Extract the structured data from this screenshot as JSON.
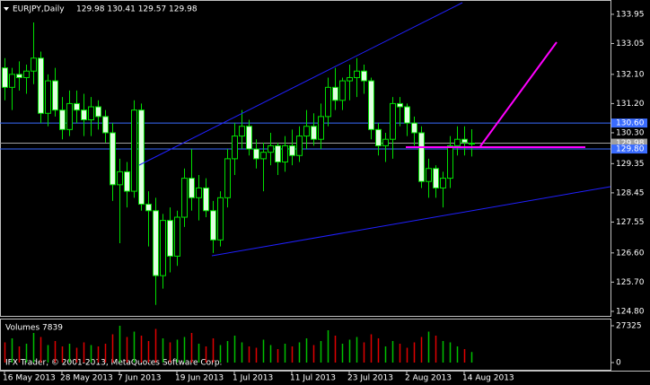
{
  "chart_data": [
    {
      "type": "candlestick",
      "title": "EURJPY,Daily",
      "subtitle": "129.98 130.41 129.57 129.98",
      "categories": [
        "16 May 2013",
        null,
        null,
        null,
        null,
        null,
        null,
        null,
        "28 May 2013",
        null,
        null,
        null,
        null,
        null,
        null,
        null,
        "7 Jun 2013",
        null,
        null,
        null,
        null,
        null,
        null,
        null,
        "19 Jun 2013",
        null,
        null,
        null,
        null,
        null,
        null,
        null,
        "1 Jul 2013",
        null,
        null,
        null,
        null,
        null,
        null,
        null,
        "11 Jul 2013",
        null,
        null,
        null,
        null,
        null,
        null,
        null,
        "23 Jul 2013",
        null,
        null,
        null,
        null,
        null,
        null,
        null,
        "2 Aug 2013",
        null,
        null,
        null,
        null,
        null,
        null,
        null,
        "14 Aug 2013",
        null
      ],
      "open": [
        132.3,
        131.7,
        132.1,
        132.0,
        132.2,
        132.6,
        130.9,
        131.9,
        131.0,
        130.4,
        131.2,
        131.0,
        130.7,
        131.1,
        130.8,
        130.3,
        128.7,
        129.1,
        128.5,
        131.0,
        128.1,
        127.9,
        125.9,
        127.6,
        126.5,
        127.7,
        128.9,
        128.3,
        128.6,
        127.9,
        127.0,
        128.3,
        129.5,
        130.2,
        130.5,
        129.8,
        129.5,
        129.7,
        129.9,
        129.4,
        129.9,
        129.6,
        130.2,
        130.5,
        130.1,
        130.8,
        131.7,
        131.3,
        131.9,
        132.0,
        132.2,
        131.9,
        130.4,
        129.9,
        130.1,
        131.2,
        131.1,
        130.6,
        130.3,
        128.8,
        129.2,
        128.6,
        128.9,
        129.9,
        130.1,
        129.98
      ],
      "high": [
        132.6,
        132.3,
        132.5,
        132.4,
        133.7,
        132.8,
        132.1,
        132.3,
        131.4,
        131.6,
        131.6,
        131.5,
        131.4,
        131.3,
        131.0,
        130.6,
        129.5,
        129.4,
        131.3,
        131.2,
        128.5,
        128.3,
        127.8,
        128.0,
        127.9,
        129.2,
        129.8,
        129.0,
        128.9,
        128.2,
        128.5,
        129.8,
        130.6,
        131.0,
        130.7,
        130.1,
        130.0,
        130.3,
        130.0,
        130.2,
        130.4,
        130.5,
        131.0,
        130.9,
        131.2,
        132.0,
        132.3,
        132.0,
        132.4,
        132.6,
        132.4,
        132.0,
        130.6,
        130.3,
        131.4,
        131.4,
        131.2,
        130.8,
        130.5,
        129.5,
        129.3,
        129.1,
        130.2,
        130.5,
        130.5,
        130.41
      ],
      "low": [
        131.3,
        131.0,
        131.6,
        131.5,
        131.8,
        130.6,
        130.5,
        130.8,
        130.1,
        130.2,
        130.6,
        130.2,
        130.2,
        130.4,
        130.0,
        128.2,
        126.9,
        128.0,
        128.3,
        127.9,
        126.8,
        125.0,
        125.5,
        126.0,
        126.2,
        127.4,
        127.9,
        127.6,
        127.7,
        126.6,
        126.8,
        128.0,
        129.0,
        129.8,
        129.6,
        129.2,
        128.5,
        129.3,
        129.0,
        129.1,
        129.3,
        129.4,
        129.8,
        129.9,
        129.8,
        130.5,
        131.0,
        131.0,
        131.3,
        131.4,
        131.5,
        130.1,
        129.6,
        129.4,
        129.5,
        130.5,
        130.2,
        129.9,
        128.6,
        128.3,
        128.3,
        128.0,
        128.6,
        129.6,
        129.6,
        129.57
      ],
      "close": [
        131.7,
        132.1,
        132.0,
        132.2,
        132.6,
        130.9,
        131.9,
        131.0,
        130.4,
        131.2,
        131.0,
        130.7,
        131.1,
        130.8,
        130.3,
        128.7,
        129.1,
        128.5,
        131.0,
        128.1,
        127.9,
        125.9,
        127.6,
        126.5,
        127.7,
        128.9,
        128.3,
        128.6,
        127.9,
        127.0,
        128.3,
        129.5,
        130.2,
        130.5,
        129.8,
        129.5,
        129.7,
        129.9,
        129.4,
        129.9,
        129.6,
        130.2,
        130.5,
        130.1,
        130.8,
        131.7,
        131.3,
        131.9,
        132.0,
        132.2,
        131.9,
        130.4,
        129.9,
        130.1,
        131.2,
        131.1,
        130.6,
        130.3,
        128.8,
        129.2,
        128.6,
        128.9,
        129.9,
        130.1,
        130.0,
        129.98
      ],
      "up_color": "#000000",
      "down_color": "#e0ffe0",
      "wick_color": "#00e000",
      "ylim": [
        124.66,
        134.39
      ],
      "yticks": [
        {
          "value": 133.95,
          "label": "133.95"
        },
        {
          "value": 133.05,
          "label": "133.05"
        },
        {
          "value": 132.1,
          "label": "132.10"
        },
        {
          "value": 131.2,
          "label": "131.20"
        },
        {
          "value": 130.3,
          "label": "130.30"
        },
        {
          "value": 129.35,
          "label": "129.35"
        },
        {
          "value": 128.45,
          "label": "128.45"
        },
        {
          "value": 127.55,
          "label": "127.55"
        },
        {
          "value": 126.6,
          "label": "126.60"
        },
        {
          "value": 125.7,
          "label": "125.70"
        },
        {
          "value": 124.8,
          "label": "124.80"
        }
      ],
      "price_lines": [
        {
          "value": 130.6,
          "label": "130.60",
          "color": "#3a6cff"
        },
        {
          "value": 129.98,
          "label": "129.98",
          "color": "#a0a0a0"
        },
        {
          "value": 129.8,
          "label": "129.80",
          "color": "#3a6cff"
        }
      ],
      "annotations": [
        "IFX Trader, © 2001-2013, MetaQuotes Software Corp."
      ]
    },
    {
      "type": "volume",
      "title": "Volumes 7839",
      "values": [
        15000,
        18000,
        12000,
        14000,
        22000,
        19000,
        13000,
        16000,
        12000,
        14000,
        11000,
        15000,
        13000,
        12000,
        14000,
        21000,
        27325,
        19000,
        23000,
        20000,
        16000,
        25000,
        18000,
        15000,
        17000,
        19000,
        22000,
        14000,
        12000,
        18000,
        13000,
        16000,
        20000,
        15000,
        12000,
        11000,
        17000,
        13000,
        10000,
        14000,
        12000,
        15000,
        18000,
        13000,
        16000,
        24000,
        20000,
        14000,
        17000,
        19000,
        15000,
        21000,
        18000,
        12000,
        16000,
        14000,
        11000,
        15000,
        19000,
        23000,
        20000,
        16000,
        15000,
        12000,
        10000,
        7839
      ],
      "up_color": "#00c000",
      "down_color": "#e00000",
      "ylim": [
        0,
        27325
      ],
      "yticks": [
        27325,
        0
      ]
    }
  ]
}
